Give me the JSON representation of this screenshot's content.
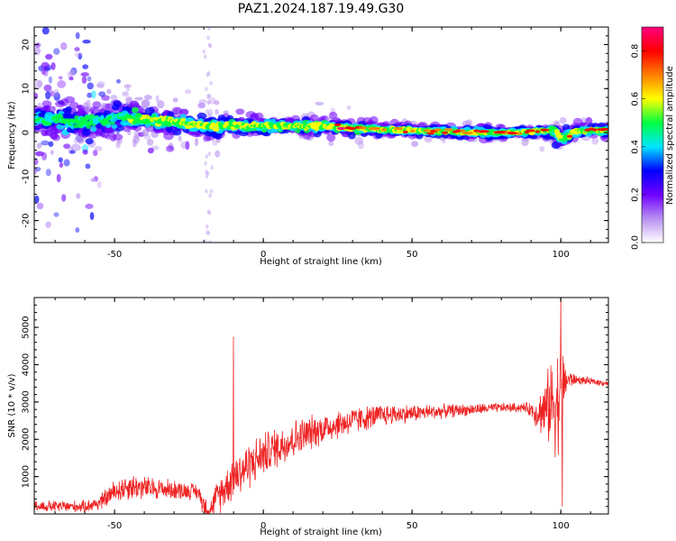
{
  "figure": {
    "title": "PAZ1.2024.187.19.49.G30"
  },
  "chart_data": [
    {
      "type": "heatmap",
      "title": "PAZ1.2024.187.19.49.G30",
      "xlabel": "Height of straight line (km)",
      "ylabel": "Frequency (Hz)",
      "xlim": [
        -77,
        116
      ],
      "ylim": [
        -25,
        24
      ],
      "xticks": [
        -50,
        0,
        50,
        100
      ],
      "yticks": [
        -20,
        -10,
        0,
        10,
        20
      ],
      "ridge": {
        "x": [
          -77,
          -60,
          -48,
          -40,
          -30,
          -20,
          -10,
          0,
          10,
          20,
          30,
          40,
          50,
          60,
          70,
          80,
          90,
          95,
          98,
          100,
          105,
          110,
          116
        ],
        "y": [
          3,
          2.5,
          3.5,
          3,
          2.5,
          1.5,
          1.5,
          1.5,
          1.5,
          1.5,
          1,
          0.8,
          0.5,
          0.3,
          0,
          0,
          0.2,
          0.5,
          0.5,
          -1.5,
          0.3,
          0.5,
          0.5
        ],
        "halfwidth_hz": [
          9,
          8,
          3,
          2.5,
          2,
          2,
          2,
          1.6,
          1.6,
          1.4,
          1.2,
          1.1,
          1,
          1,
          1,
          1,
          1,
          1.2,
          2,
          2,
          1.2,
          1.2,
          1.2
        ]
      },
      "peak_segments": [
        {
          "x": [
            25,
            95
          ],
          "amplitude": "high"
        },
        {
          "x": [
            103,
            116
          ],
          "amplitude": "high"
        }
      ],
      "colorbar": {
        "label": "Normalized spectral amplitude",
        "range": [
          0,
          0.9
        ],
        "ticks": [
          "0.0",
          "0.2",
          "0.4",
          "0.6",
          "0.8"
        ],
        "colors": [
          "#ffffff",
          "#b890f0",
          "#7000ff",
          "#0000ff",
          "#00e5ff",
          "#00ff40",
          "#ffff00",
          "#ff7f00",
          "#ff0000",
          "#ff007f"
        ]
      }
    },
    {
      "type": "line",
      "xlabel": "Height of straight line (km)",
      "ylabel": "SNR (10 * v/v)",
      "xlim": [
        -77,
        116
      ],
      "ylim": [
        0,
        5800
      ],
      "xticks": [
        -50,
        0,
        50,
        100
      ],
      "yticks": [
        1000,
        2000,
        3000,
        4000,
        5000
      ],
      "color": "#ee2222",
      "envelope": {
        "x": [
          -77,
          -60,
          -55,
          -50,
          -45,
          -40,
          -30,
          -22,
          -20,
          -18,
          -16,
          -14,
          -12,
          -10,
          -5,
          0,
          10,
          20,
          30,
          40,
          50,
          60,
          70,
          80,
          88,
          90,
          92,
          95,
          97,
          99,
          100,
          102,
          105,
          110,
          116
        ],
        "mean": [
          200,
          200,
          300,
          600,
          750,
          700,
          650,
          600,
          250,
          100,
          400,
          600,
          800,
          1000,
          1300,
          1600,
          2000,
          2300,
          2500,
          2650,
          2700,
          2750,
          2800,
          2850,
          2850,
          2800,
          2700,
          2800,
          3000,
          3000,
          3200,
          3600,
          3600,
          3550,
          3500
        ],
        "amp": [
          150,
          150,
          200,
          300,
          350,
          300,
          250,
          200,
          300,
          150,
          400,
          500,
          500,
          600,
          600,
          550,
          500,
          400,
          350,
          280,
          220,
          180,
          150,
          120,
          120,
          200,
          400,
          800,
          1200,
          1400,
          1400,
          300,
          120,
          90,
          80
        ]
      },
      "spikes": [
        {
          "x": -10,
          "y": 4750
        },
        {
          "x": 100,
          "y": 5800
        },
        {
          "x": 100.5,
          "y": 200
        }
      ]
    }
  ]
}
